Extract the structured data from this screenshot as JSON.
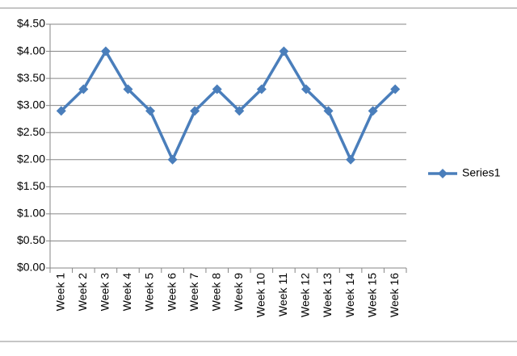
{
  "chart_data": {
    "type": "line",
    "categories": [
      "Week 1",
      "Week 2",
      "Week 3",
      "Week 4",
      "Week 5",
      "Week 6",
      "Week 7",
      "Week 8",
      "Week 9",
      "Week 10",
      "Week 11",
      "Week 12",
      "Week 13",
      "Week 14",
      "Week 15",
      "Week 16"
    ],
    "series": [
      {
        "name": "Series1",
        "color": "#4a7ebb",
        "values": [
          2.9,
          3.3,
          4.0,
          3.3,
          2.9,
          2.0,
          2.9,
          3.3,
          2.9,
          3.3,
          4.0,
          3.3,
          2.9,
          2.0,
          2.9,
          3.3
        ]
      }
    ],
    "ylim": [
      0,
      4.5
    ],
    "yticks": [
      {
        "value": 0,
        "label": "$0.00"
      },
      {
        "value": 0.5,
        "label": "$0.50"
      },
      {
        "value": 1,
        "label": "$1.00"
      },
      {
        "value": 1.5,
        "label": "$1.50"
      },
      {
        "value": 2,
        "label": "$2.00"
      },
      {
        "value": 2.5,
        "label": "$2.50"
      },
      {
        "value": 3,
        "label": "$3.00"
      },
      {
        "value": 3.5,
        "label": "$3.50"
      },
      {
        "value": 4,
        "label": "$4.00"
      },
      {
        "value": 4.5,
        "label": "$4.50"
      }
    ],
    "grid": true,
    "legend": "right"
  }
}
